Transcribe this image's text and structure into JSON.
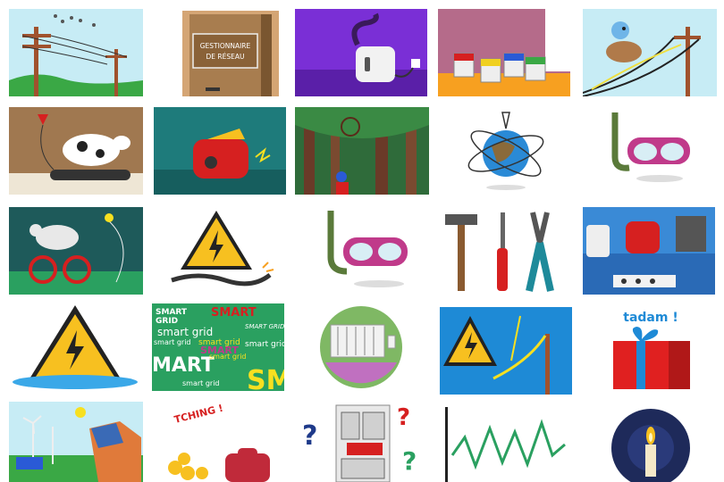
{
  "door_sign": {
    "line1": "GESTIONNAIRE",
    "line2": "DE RÉSEAU"
  },
  "smart_grid": {
    "words": [
      "SMART",
      "GRID",
      "SMART",
      "smart grid",
      "SMART GRID",
      "smart grid",
      "smart grid",
      "smart grid",
      "MART",
      "smart grid",
      "SMART",
      "smart grid",
      "SM"
    ]
  },
  "tadam": "tadam !",
  "tching": "TCHING !",
  "qmark": "?"
}
